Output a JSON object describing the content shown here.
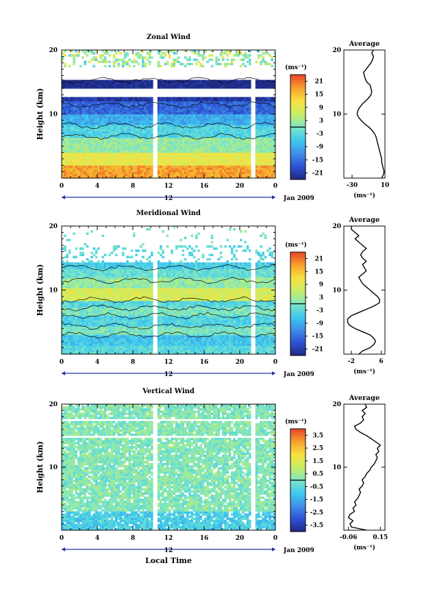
{
  "x_axis_label": "Local Time",
  "date_label": "Jan 2009",
  "chart_data": [
    {
      "type": "heatmap",
      "title": "Zonal Wind",
      "ylabel": "Height (km)",
      "xlim": [
        0,
        24
      ],
      "ylim": [
        0,
        20
      ],
      "x_ticks": [
        "0",
        "4",
        "8",
        "12",
        "16",
        "20",
        "0"
      ],
      "y_ticks": [
        "20",
        "10"
      ],
      "day_tick_label": "12",
      "colorbar_unit": "(ms⁻¹)",
      "colorbar_ticks": [
        "21",
        "15",
        "9",
        "3",
        "-3",
        "-9",
        "-15",
        "-21"
      ],
      "colorbar_range": [
        -24,
        24
      ],
      "colormap": [
        "#1e2a82",
        "#2d50d2",
        "#3f8fe6",
        "#3ec9ef",
        "#7ce5c6",
        "#c7ee66",
        "#f7e23f",
        "#f6a32d",
        "#e8462a"
      ],
      "profile": {
        "title": "Average",
        "xlabel": "(ms⁻¹)",
        "x_ticks": [
          "-30",
          "10"
        ],
        "xlim": [
          -40,
          10
        ],
        "ylim": [
          0,
          20
        ],
        "y_ticks": [
          "20",
          "10"
        ],
        "x_values": [
          6,
          8,
          9,
          8,
          7,
          6,
          6,
          5,
          4,
          3,
          2,
          1,
          0,
          -1,
          -3,
          -6,
          -10,
          -15,
          -19,
          -22,
          -24,
          -23,
          -21,
          -18,
          -14,
          -10,
          -7,
          -6,
          -7,
          -8,
          -12,
          -14,
          -15,
          -16,
          -13,
          -10,
          -7,
          -5,
          -4,
          -6,
          -4
        ],
        "y_values": [
          0,
          0.5,
          1,
          1.5,
          2,
          2.5,
          3,
          3.5,
          4,
          4.5,
          5,
          5.5,
          6,
          6.5,
          7,
          7.5,
          8,
          8.5,
          9,
          9.5,
          10,
          10.5,
          11,
          11.5,
          12,
          12.5,
          13,
          13.5,
          14,
          14.5,
          15,
          15.5,
          16,
          16.5,
          17,
          17.5,
          18,
          18.5,
          19,
          19.5,
          20
        ]
      }
    },
    {
      "type": "heatmap",
      "title": "Meridional Wind",
      "ylabel": "Height (km)",
      "xlim": [
        0,
        24
      ],
      "ylim": [
        0,
        20
      ],
      "x_ticks": [
        "0",
        "4",
        "8",
        "12",
        "16",
        "20",
        "0"
      ],
      "y_ticks": [
        "20",
        "10"
      ],
      "day_tick_label": "12",
      "colorbar_unit": "(ms⁻¹)",
      "colorbar_ticks": [
        "21",
        "15",
        "9",
        "3",
        "-3",
        "-9",
        "-15",
        "-21"
      ],
      "colorbar_range": [
        -24,
        24
      ],
      "colormap": [
        "#1e2a82",
        "#2d50d2",
        "#3f8fe6",
        "#3ec9ef",
        "#7ce5c6",
        "#c7ee66",
        "#f7e23f",
        "#f6a32d",
        "#e8462a"
      ],
      "profile": {
        "title": "Average",
        "xlabel": "(ms⁻¹)",
        "x_ticks": [
          "-2",
          "6"
        ],
        "xlim": [
          -4,
          7
        ],
        "ylim": [
          0,
          20
        ],
        "y_ticks": [
          "20",
          "10"
        ],
        "x_values": [
          0,
          1,
          3,
          4,
          4.5,
          4,
          3,
          1,
          -1,
          -2.5,
          -3,
          -3,
          -2,
          0,
          2,
          4,
          5.5,
          5.6,
          5,
          4,
          3,
          2,
          1,
          0.5,
          0,
          1,
          2,
          1.5,
          1,
          2,
          1,
          0.5,
          1,
          2,
          1,
          0,
          -1,
          0,
          -1,
          -2,
          -2
        ],
        "y_values": [
          0,
          0.5,
          1,
          1.5,
          2,
          2.5,
          3,
          3.5,
          4,
          4.5,
          5,
          5.5,
          6,
          6.5,
          7,
          7.5,
          8,
          8.5,
          9,
          9.5,
          10,
          10.5,
          11,
          11.5,
          12,
          12.5,
          13,
          13.5,
          14,
          14.5,
          15,
          15.5,
          16,
          16.5,
          17,
          17.5,
          18,
          18.5,
          19,
          19.5,
          20
        ]
      }
    },
    {
      "type": "heatmap",
      "title": "Vertical Wind",
      "ylabel": "Height (km)",
      "xlim": [
        0,
        24
      ],
      "ylim": [
        0,
        20
      ],
      "x_ticks": [
        "0",
        "4",
        "8",
        "12",
        "16",
        "20",
        "0"
      ],
      "y_ticks": [
        "20",
        "10"
      ],
      "day_tick_label": "12",
      "colorbar_unit": "(ms⁻¹)",
      "colorbar_ticks": [
        "3.5",
        "2.5",
        "1.5",
        "0.5",
        "-0.5",
        "-1.5",
        "-2.5",
        "-3.5"
      ],
      "colorbar_range": [
        -4,
        4
      ],
      "colormap": [
        "#1e2a82",
        "#2d50d2",
        "#3f8fe6",
        "#3ec9ef",
        "#7ce5c6",
        "#c7ee66",
        "#f7e23f",
        "#f6a32d",
        "#e8462a"
      ],
      "profile": {
        "title": "Average",
        "xlabel": "(ms⁻¹)",
        "x_ticks": [
          "-0.06",
          "0.15"
        ],
        "xlim": [
          -0.09,
          0.18
        ],
        "ylim": [
          0,
          20
        ],
        "y_ticks": [
          "20",
          "10"
        ],
        "x_values": [
          0.06,
          -0.04,
          -0.05,
          -0.03,
          -0.06,
          -0.05,
          -0.02,
          -0.03,
          -0.01,
          -0.02,
          0.0,
          0.01,
          0.02,
          0.01,
          0.03,
          0.04,
          0.03,
          0.05,
          0.06,
          0.08,
          0.09,
          0.11,
          0.12,
          0.13,
          0.12,
          0.14,
          0.13,
          0.15,
          0.12,
          0.09,
          0.06,
          0.02,
          -0.01,
          -0.02,
          0.02,
          0.04,
          0.03,
          0.05,
          0.03,
          0.06,
          0.05
        ],
        "y_values": [
          0,
          0.5,
          1,
          1.5,
          2,
          2.5,
          3,
          3.5,
          4,
          4.5,
          5,
          5.5,
          6,
          6.5,
          7,
          7.5,
          8,
          8.5,
          9,
          9.5,
          10,
          10.5,
          11,
          11.5,
          12,
          12.5,
          13,
          13.5,
          14,
          14.5,
          15,
          15.5,
          16,
          16.5,
          17,
          17.5,
          18,
          18.5,
          19,
          19.5,
          20
        ]
      }
    }
  ]
}
